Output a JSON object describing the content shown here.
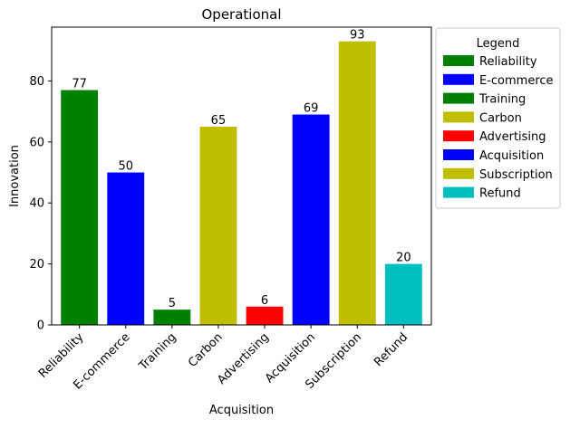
{
  "chart_data": {
    "type": "bar",
    "title": "Operational",
    "xlabel": "Acquisition",
    "ylabel": "Innovation",
    "categories": [
      "Reliability",
      "E-commerce",
      "Training",
      "Carbon",
      "Advertising",
      "Acquisition",
      "Subscription",
      "Refund"
    ],
    "values": [
      77,
      50,
      5,
      65,
      6,
      69,
      93,
      20
    ],
    "colors": [
      "#008000",
      "#0000ff",
      "#008000",
      "#bfbf00",
      "#ff0000",
      "#0000ff",
      "#bfbf00",
      "#00bfbf"
    ],
    "ylim": [
      0,
      97.65
    ],
    "yticks": [
      0,
      20,
      40,
      60,
      80
    ],
    "grid": false,
    "legend": {
      "title": "Legend",
      "placement": "outside-right",
      "entries": [
        "Reliability",
        "E-commerce",
        "Training",
        "Carbon",
        "Advertising",
        "Acquisition",
        "Subscription",
        "Refund"
      ]
    }
  }
}
